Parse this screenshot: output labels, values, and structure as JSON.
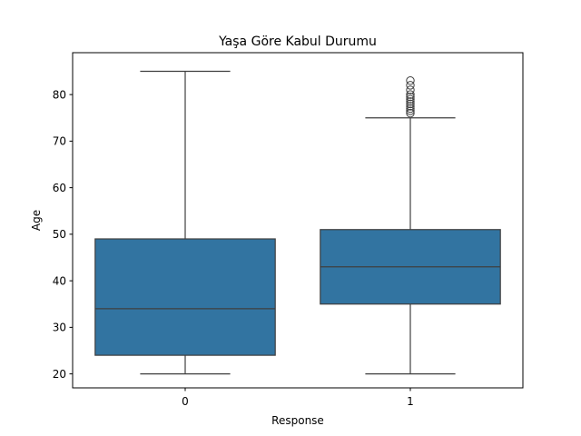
{
  "chart_data": {
    "type": "box",
    "title": "Yaşa Göre Kabul Durumu",
    "xlabel": "Response",
    "ylabel": "Age",
    "categories": [
      "0",
      "1"
    ],
    "boxes": [
      {
        "category": "0",
        "whisker_low": 20,
        "q1": 24,
        "median": 34,
        "q3": 49,
        "whisker_high": 85,
        "fliers": []
      },
      {
        "category": "1",
        "whisker_low": 20,
        "q1": 35,
        "median": 43,
        "q3": 51,
        "whisker_high": 75,
        "fliers": [
          76,
          76.5,
          77,
          77.5,
          78,
          78.5,
          79,
          79.5,
          80,
          81,
          82,
          83
        ]
      }
    ],
    "ylim": [
      17,
      89
    ],
    "yticks": [
      20,
      30,
      40,
      50,
      60,
      70,
      80
    ],
    "box_color": "#3274a1",
    "line_color": "#3f3f3f",
    "grid": false
  }
}
